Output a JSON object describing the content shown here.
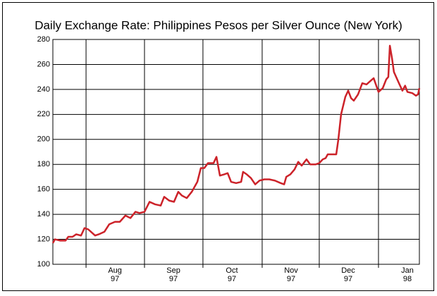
{
  "chart_data": {
    "type": "line",
    "title": "Daily Exchange Rate: Philippines Pesos per Silver Ounce (New York)",
    "xlim": [
      0,
      190
    ],
    "ylim": [
      100,
      280
    ],
    "yticks": [
      100,
      120,
      140,
      160,
      180,
      200,
      220,
      240,
      260,
      280
    ],
    "xticks": [
      {
        "value": 17.2,
        "label": "Aug",
        "year": "97"
      },
      {
        "value": 47.5,
        "label": "Sep",
        "year": "97"
      },
      {
        "value": 77.8,
        "label": "Oct",
        "year": "97"
      },
      {
        "value": 108.5,
        "label": "Nov",
        "year": "97"
      },
      {
        "value": 138.1,
        "label": "Dec",
        "year": "97"
      },
      {
        "value": 168.8,
        "label": "Jan",
        "year": "98"
      }
    ],
    "grid": true,
    "series": [
      {
        "color": "#cc2229",
        "x": [
          0,
          1.1,
          3.7,
          6.6,
          8,
          10.2,
          12.1,
          14.6,
          16.4,
          18.3,
          21.9,
          23.8,
          26.7,
          29.2,
          32.2,
          34.7,
          37.6,
          40.2,
          42.8,
          44.9,
          47.5,
          50.1,
          53,
          55.9,
          57.7,
          60.3,
          62.8,
          65,
          66.9,
          69.4,
          72,
          74.9,
          76.7,
          78.5,
          80.4,
          83.3,
          84.8,
          86.6,
          88.8,
          90.6,
          92.4,
          95,
          97.6,
          98.6,
          100.5,
          102.7,
          104.9,
          107.1,
          109.6,
          112.2,
          115.1,
          118.1,
          119.9,
          121,
          123.1,
          125.3,
          127.2,
          129,
          131.5,
          133.4,
          136.3,
          138.1,
          139.9,
          141.4,
          142.5,
          144.3,
          146.9,
          148,
          149.4,
          151.6,
          153.1,
          154.6,
          156,
          158.2,
          160.4,
          162.6,
          164.8,
          166.3,
          168.8,
          171,
          172.8,
          173.9,
          174.7,
          175.8,
          176.8,
          179.4,
          181.2,
          182.6,
          183.8,
          186.4,
          188.2,
          189.3,
          190
        ],
        "values": [
          117,
          120,
          119,
          119,
          122,
          122,
          124,
          123,
          129,
          128,
          123,
          124,
          126,
          132,
          134,
          134,
          139,
          137,
          142,
          141,
          142,
          150,
          148,
          147,
          154,
          151,
          150,
          158,
          155,
          153,
          158,
          166,
          177,
          177,
          181,
          181,
          186,
          171,
          172,
          173,
          166,
          165,
          166,
          174,
          172,
          169,
          164,
          167,
          168,
          168,
          167,
          165,
          164,
          170,
          172,
          176,
          182,
          179,
          184,
          180,
          180,
          181,
          184,
          185,
          188,
          188,
          188,
          200,
          220,
          234,
          239,
          233,
          231,
          236,
          245,
          244,
          247,
          249,
          238,
          241,
          248,
          250,
          275,
          265,
          254,
          245,
          239,
          243,
          238,
          237,
          235,
          236,
          241
        ]
      }
    ]
  }
}
